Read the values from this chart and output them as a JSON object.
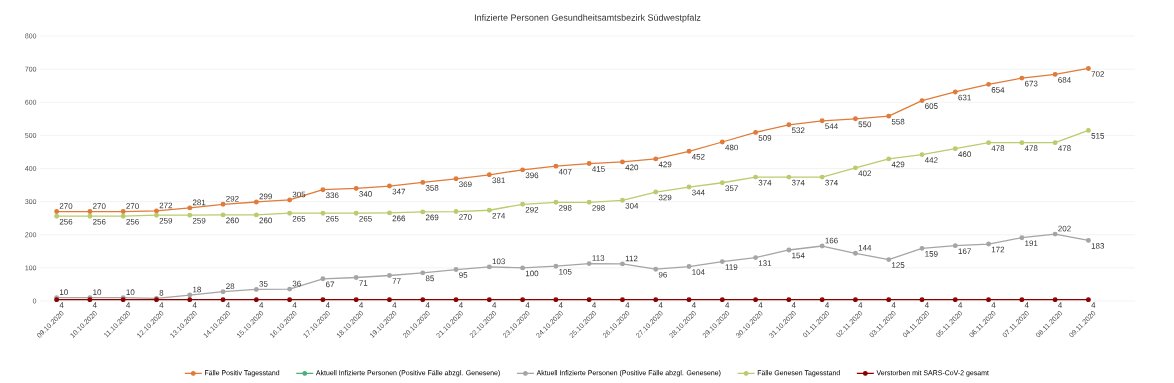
{
  "chart_data": {
    "type": "line",
    "title": "Infizierte Personen Gesundheitsamtsbezirk Südwestpfalz",
    "categories": [
      "09.10.2020",
      "10.10.2020",
      "11.10.2020",
      "12.10.2020",
      "13.10.2020",
      "14.10.2020",
      "15.10.2020",
      "16.10.2020",
      "17.10.2020",
      "18.10.2020",
      "19.10.2020",
      "20.10.2020",
      "21.10.2020",
      "22.10.2020",
      "23.10.2020",
      "24.10.2020",
      "25.10.2020",
      "26.10.2020",
      "27.10.2020",
      "28.10.2020",
      "29.10.2020",
      "30.10.2020",
      "31.10.2020",
      "01.11.2020",
      "02.11.2020",
      "03.11.2020",
      "04.11.2020",
      "05.11.2020",
      "06.11.2020",
      "07.11.2020",
      "08.11.2020",
      "09.11.2020"
    ],
    "series": [
      {
        "name": "Fälle Positiv Tagesstand",
        "color": "#e07b39",
        "values": [
          270,
          270,
          270,
          272,
          281,
          292,
          299,
          305,
          336,
          340,
          347,
          358,
          369,
          381,
          396,
          407,
          415,
          420,
          429,
          452,
          480,
          509,
          532,
          544,
          550,
          558,
          605,
          631,
          654,
          673,
          684,
          702
        ]
      },
      {
        "name": "Aktuell Infizierte Personen (Positive Fälle abzgl. Genesene)",
        "color": "#4caf7d",
        "values": [
          null,
          null,
          null,
          null,
          null,
          null,
          null,
          null,
          null,
          null,
          null,
          null,
          null,
          null,
          null,
          null,
          null,
          null,
          null,
          null,
          null,
          null,
          null,
          null,
          null,
          null,
          null,
          null,
          null,
          null,
          null,
          null
        ]
      },
      {
        "name": "Aktuell Infizierte Personen (Positive Fälle abzgl. Genesene)",
        "color": "#a5a5a5",
        "values": [
          10,
          10,
          10,
          8,
          18,
          28,
          35,
          36,
          67,
          71,
          77,
          85,
          95,
          103,
          100,
          105,
          113,
          112,
          96,
          104,
          119,
          131,
          154,
          166,
          144,
          125,
          159,
          167,
          172,
          191,
          202,
          183
        ]
      },
      {
        "name": "Fälle Genesen Tagesstand",
        "color": "#b9cc6e",
        "values": [
          256,
          256,
          256,
          259,
          259,
          260,
          260,
          265,
          265,
          265,
          266,
          269,
          270,
          274,
          292,
          298,
          298,
          304,
          329,
          344,
          357,
          374,
          374,
          374,
          402,
          429,
          442,
          460,
          478,
          478,
          478,
          515
        ]
      },
      {
        "name": "Verstorben mit SARS-CoV-2 gesamt",
        "color": "#8b0000",
        "values": [
          4,
          4,
          4,
          4,
          4,
          4,
          4,
          4,
          4,
          4,
          4,
          4,
          4,
          4,
          4,
          4,
          4,
          4,
          4,
          4,
          4,
          4,
          4,
          4,
          4,
          4,
          4,
          4,
          4,
          4,
          4,
          4
        ]
      }
    ],
    "ylim": [
      0,
      800
    ],
    "yticks": [
      0,
      100,
      200,
      300,
      400,
      500,
      600,
      700,
      800
    ],
    "grid": "y",
    "legend": "bottom",
    "marker": "circle",
    "line_style": "solid",
    "data_labels": true
  }
}
